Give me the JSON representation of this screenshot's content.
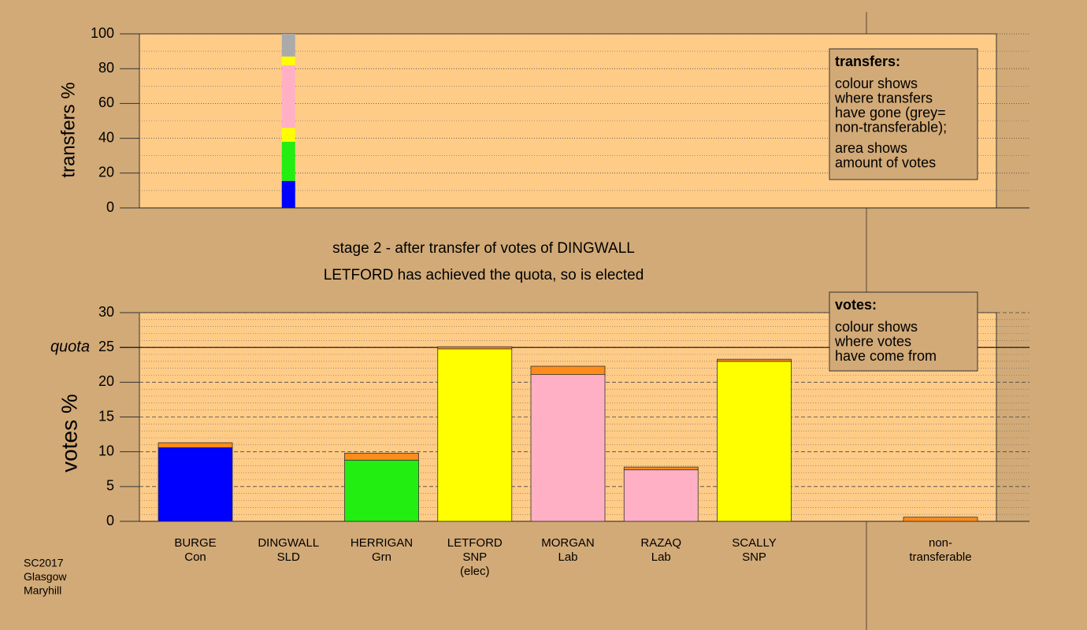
{
  "chart_data": [
    {
      "type": "stacked_bar",
      "ylabel": "transfers %",
      "ylim": [
        0,
        100
      ],
      "yticks": [
        0,
        20,
        40,
        60,
        80,
        100
      ],
      "grid": true,
      "segments": [
        {
          "value": 15.5,
          "color": "#0000ff"
        },
        {
          "value": 22.5,
          "color": "#22ee11"
        },
        {
          "value": 8,
          "color": "#ffff00"
        },
        {
          "value": 27,
          "color": "#ffb0c4"
        },
        {
          "value": 9,
          "color": "#ffb0c4"
        },
        {
          "value": 5,
          "color": "#ffff00"
        },
        {
          "value": 13,
          "color": "#aaaaaa"
        }
      ],
      "annotation": {
        "title": "transfers:",
        "lines": [
          [
            "colour shows",
            "where transfers",
            "have gone (grey=",
            "non-transferable);"
          ],
          [
            "area shows",
            "amount of votes"
          ]
        ]
      }
    },
    {
      "type": "stacked_bar",
      "title": [
        "stage 2 - after transfer of votes of DINGWALL",
        "LETFORD has achieved the quota, so is elected"
      ],
      "ylabel": "votes %",
      "ylim": [
        0,
        30
      ],
      "yticks": [
        0,
        5,
        10,
        15,
        20,
        {
          "value": 25,
          "label": "25"
        },
        30
      ],
      "grid": true,
      "quota": {
        "value": 25,
        "label": "quota"
      },
      "categories": [
        [
          "BURGE",
          "Con"
        ],
        [
          "DINGWALL",
          "SLD"
        ],
        [
          "HERRIGAN",
          "Grn"
        ],
        [
          "LETFORD",
          "SNP",
          "(elec)"
        ],
        [
          "MORGAN",
          "Lab"
        ],
        [
          "RAZAQ",
          "Lab"
        ],
        [
          "SCALLY",
          "SNP"
        ],
        null,
        [
          "non-",
          "transferable"
        ]
      ],
      "base_values": [
        10.6,
        0,
        8.8,
        24.8,
        21.1,
        7.4,
        23.0,
        null,
        0
      ],
      "transfer_values": [
        0.7,
        0,
        1.0,
        0.3,
        1.2,
        0.4,
        0.3,
        null,
        0.6
      ],
      "base_colors": [
        "#0000ff",
        "#cccccc",
        "#22ee11",
        "#ffff00",
        "#ffb0c4",
        "#ffb0c4",
        "#ffff00",
        null,
        "#aaaaaa"
      ],
      "transfer_color": "#ff8c1a",
      "annotation": {
        "title": "votes:",
        "lines": [
          [
            "colour shows",
            "where votes",
            "have come from"
          ]
        ]
      }
    }
  ],
  "footer": [
    "SC2017",
    "Glasgow",
    "Maryhill"
  ]
}
